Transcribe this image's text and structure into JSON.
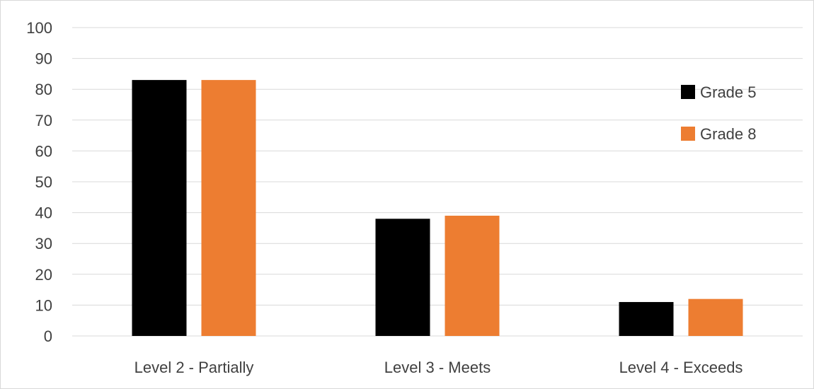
{
  "chart_data": {
    "type": "bar",
    "title": "",
    "xlabel": "",
    "ylabel": "",
    "categories": [
      "Level 2 - Partially",
      "Level 3 - Meets",
      "Level 4 - Exceeds"
    ],
    "series": [
      {
        "name": "Grade 5",
        "values": [
          83,
          38,
          11
        ],
        "color": "#000000"
      },
      {
        "name": "Grade 8",
        "values": [
          83,
          39,
          12
        ],
        "color": "#ED7D31"
      }
    ],
    "ylim": [
      0,
      100
    ],
    "yticks": [
      0,
      10,
      20,
      30,
      40,
      50,
      60,
      70,
      80,
      90,
      100
    ],
    "grid": true,
    "legend_position": "right"
  }
}
